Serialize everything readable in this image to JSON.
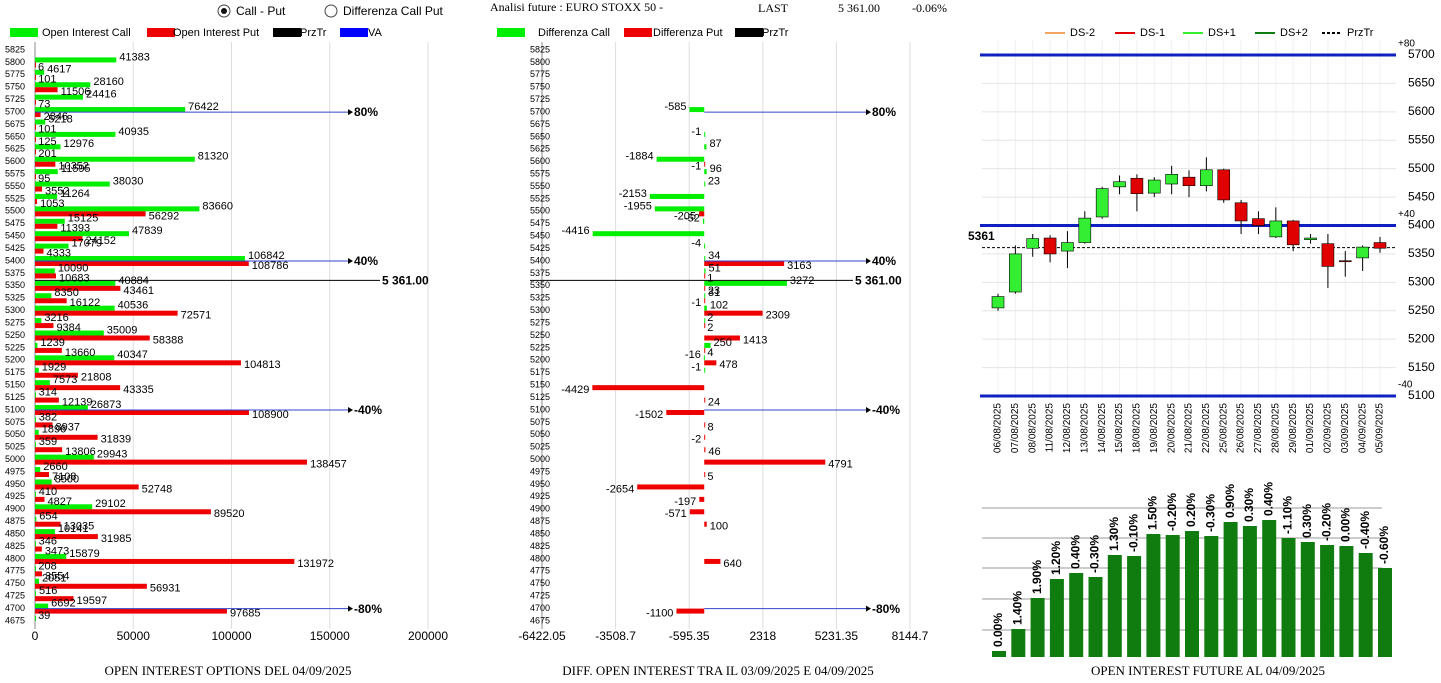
{
  "header": {
    "options": [
      "Call - Put",
      "Differenza Call Put"
    ],
    "title": "Analisi future : EURO STOXX 50 -",
    "last_label": "LAST",
    "last": "5 361.00",
    "change": "-0.06%"
  },
  "chart_data": [
    {
      "type": "barh",
      "title": "OPEN INTEREST OPTIONS DEL 04/09/2025",
      "categories": [
        5825,
        5800,
        5775,
        5750,
        5725,
        5700,
        5675,
        5650,
        5625,
        5600,
        5575,
        5550,
        5525,
        5500,
        5475,
        5450,
        5425,
        5400,
        5375,
        5350,
        5325,
        5300,
        5275,
        5250,
        5225,
        5200,
        5175,
        5150,
        5125,
        5100,
        5075,
        5050,
        5025,
        5000,
        4975,
        4950,
        4925,
        4900,
        4875,
        4850,
        4825,
        4800,
        4775,
        4750,
        4725,
        4700,
        4675
      ],
      "series": [
        {
          "name": "Open Interest Call",
          "color": "#00ee00",
          "values": [
            null,
            41383,
            4617,
            28160,
            24416,
            76422,
            5218,
            40935,
            12976,
            81320,
            11595,
            38030,
            11264,
            83660,
            15125,
            47839,
            17079,
            106842,
            10090,
            40884,
            8350,
            40536,
            3216,
            35009,
            1239,
            40347,
            1929,
            7573,
            314,
            26873,
            382,
            1896,
            359,
            29943,
            2660,
            8500,
            410,
            29102,
            654,
            10141,
            346,
            15879,
            208,
            2051,
            516,
            6692,
            39
          ]
        },
        {
          "name": "Open Interest Put",
          "color": "#ee0000",
          "values": [
            null,
            6,
            101,
            11506,
            73,
            2846,
            101,
            125,
            201,
            10352,
            95,
            3552,
            1053,
            56292,
            11393,
            24152,
            4333,
            108786,
            10683,
            43461,
            16122,
            72571,
            9384,
            58388,
            13660,
            104813,
            21808,
            43335,
            12139,
            108900,
            8937,
            31839,
            13806,
            138457,
            7108,
            52748,
            4827,
            89520,
            13035,
            31985,
            3473,
            131972,
            3554,
            56931,
            19597,
            97685,
            null
          ]
        }
      ],
      "legend_extra": [
        {
          "name": "PrzTr",
          "color": "#000000"
        },
        {
          "name": "VA",
          "color": "#0000ff"
        }
      ],
      "xlim": [
        0,
        200000
      ],
      "xticks": [
        0,
        50000,
        100000,
        150000,
        200000
      ],
      "levels": [
        {
          "value": 5700,
          "label": "80%"
        },
        {
          "value": 5400,
          "label": "40%"
        },
        {
          "value": 5100,
          "label": "-40%"
        },
        {
          "value": 4700,
          "label": "-80%"
        }
      ],
      "price": {
        "value": 5361,
        "label": "5 361.00"
      }
    },
    {
      "type": "barh",
      "title": "DIFF. OPEN INTEREST TRA IL 03/09/2025 E 04/09/2025",
      "categories": [
        5825,
        5800,
        5775,
        5750,
        5725,
        5700,
        5675,
        5650,
        5625,
        5600,
        5575,
        5550,
        5525,
        5500,
        5475,
        5450,
        5425,
        5400,
        5375,
        5350,
        5325,
        5300,
        5275,
        5250,
        5225,
        5200,
        5175,
        5150,
        5125,
        5100,
        5075,
        5050,
        5025,
        5000,
        4975,
        4950,
        4925,
        4900,
        4875,
        4850,
        4825,
        4800,
        4775,
        4750,
        4725,
        4700,
        4675
      ],
      "series": [
        {
          "name": "Differenza Call",
          "color": "#00ee00",
          "values": [
            null,
            null,
            null,
            null,
            null,
            -585,
            null,
            -1,
            87,
            -1884,
            96,
            23,
            -2153,
            -1955,
            -52,
            -4416,
            -4,
            34,
            51,
            3272,
            31,
            102,
            2,
            null,
            250,
            -16,
            -1,
            null,
            null,
            null,
            null,
            null,
            null,
            null,
            null,
            null,
            null,
            null,
            null,
            null,
            null,
            null,
            null,
            null,
            null,
            null,
            null
          ]
        },
        {
          "name": "Differenza Put",
          "color": "#ee0000",
          "values": [
            null,
            null,
            null,
            null,
            null,
            null,
            null,
            null,
            null,
            -1,
            null,
            null,
            null,
            -205,
            null,
            null,
            null,
            3163,
            1,
            23,
            -1,
            2309,
            2,
            1413,
            4,
            478,
            null,
            -4429,
            24,
            -1502,
            8,
            -2,
            46,
            4791,
            5,
            -2654,
            -197,
            -571,
            100,
            null,
            null,
            640,
            null,
            null,
            null,
            -1100,
            null
          ]
        }
      ],
      "legend_extra": [
        {
          "name": "PrzTr",
          "color": "#000000"
        }
      ],
      "xlim": [
        -6422.05,
        8144.7
      ],
      "xticks": [
        -6422.05,
        -3508.7,
        -595.35,
        2318,
        5231.35,
        8144.7
      ],
      "levels": [
        {
          "value": 5700,
          "label": "80%"
        },
        {
          "value": 5400,
          "label": "40%"
        },
        {
          "value": 5100,
          "label": "-40%"
        },
        {
          "value": 4700,
          "label": "-80%"
        }
      ],
      "price": {
        "value": 5361,
        "label": "5 361.00"
      }
    },
    {
      "type": "candlestick",
      "x": [
        "06/08/2025",
        "07/08/2025",
        "08/08/2025",
        "11/08/2025",
        "12/08/2025",
        "13/08/2025",
        "14/08/2025",
        "15/08/2025",
        "18/08/2025",
        "19/08/2025",
        "20/08/2025",
        "21/08/2025",
        "22/08/2025",
        "25/08/2025",
        "26/08/2025",
        "27/08/2025",
        "28/08/2025",
        "29/08/2025",
        "01/09/2025",
        "02/09/2025",
        "03/09/2025",
        "04/09/2025",
        "05/09/2025"
      ],
      "open": [
        5255,
        5283,
        5360,
        5378,
        5355,
        5370,
        5415,
        5468,
        5483,
        5457,
        5473,
        5485,
        5470,
        5498,
        5440,
        5412,
        5380,
        5408,
        5375,
        5368,
        5338,
        5343,
        5370
      ],
      "high": [
        5280,
        5365,
        5385,
        5383,
        5390,
        5425,
        5468,
        5488,
        5490,
        5485,
        5505,
        5497,
        5520,
        5500,
        5445,
        5425,
        5432,
        5410,
        5385,
        5385,
        5355,
        5365,
        5380
      ],
      "low": [
        5250,
        5280,
        5345,
        5335,
        5325,
        5368,
        5412,
        5455,
        5425,
        5450,
        5455,
        5450,
        5460,
        5440,
        5385,
        5385,
        5378,
        5355,
        5368,
        5290,
        5310,
        5320,
        5352
      ],
      "close": [
        5275,
        5350,
        5377,
        5350,
        5370,
        5413,
        5465,
        5477,
        5456,
        5480,
        5490,
        5470,
        5498,
        5445,
        5408,
        5400,
        5408,
        5366,
        5378,
        5328,
        5337,
        5362,
        5360
      ],
      "up_color": "#33ee33",
      "down_color": "#e00000",
      "legend": [
        {
          "name": "DS-2",
          "color": "#f4a460",
          "dash": false
        },
        {
          "name": "DS-1",
          "color": "#e00000",
          "dash": false
        },
        {
          "name": "DS+1",
          "color": "#33ee33",
          "dash": false
        },
        {
          "name": "DS+2",
          "color": "#107c10",
          "dash": false
        },
        {
          "name": "PrzTr",
          "color": "#000000",
          "dash": true
        }
      ],
      "ylim": [
        5100,
        5700
      ],
      "yticks": [
        5100,
        5150,
        5200,
        5250,
        5300,
        5350,
        5400,
        5450,
        5500,
        5550,
        5600,
        5650,
        5700
      ],
      "levels": [
        {
          "value": 5700,
          "label": "+80"
        },
        {
          "value": 5400,
          "label": "+40"
        },
        {
          "value": 5100,
          "label": "-40"
        }
      ],
      "price": {
        "value": 5361,
        "label": "5361"
      }
    },
    {
      "type": "bar",
      "title": "OPEN INTEREST FUTURE AL 04/09/2025",
      "color": "#107c10",
      "values": [
        6,
        28,
        59,
        78,
        84,
        80,
        102,
        101,
        123,
        122,
        126,
        121,
        135,
        131,
        137,
        119,
        115,
        112,
        111,
        104,
        89
      ],
      "value_labels": [
        "0.00%",
        "1.40%",
        "1.90%",
        "1.20%",
        "0.40%",
        "-0.30%",
        "1.30%",
        "-0.10%",
        "1.50%",
        "-0.20%",
        "0.20%",
        "-0.30%",
        "0.90%",
        "0.30%",
        "0.40%",
        "-1.10%",
        "0.30%",
        "-0.20%",
        "0.00%",
        "-0.40%",
        "-0.60%"
      ],
      "ylim": [
        0,
        150
      ]
    }
  ]
}
